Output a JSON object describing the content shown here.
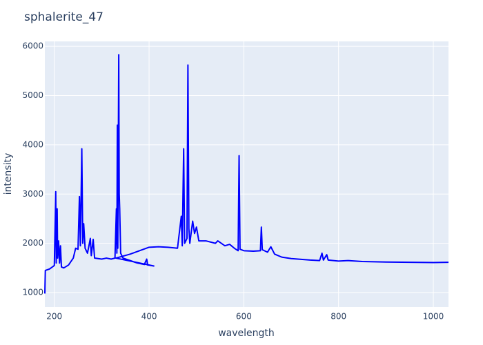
{
  "chart_data": {
    "type": "line",
    "title": "sphalerite_47",
    "x_label": "wavelength",
    "y_label": "intensity",
    "color": "#0000ff",
    "grid": true,
    "xlim": [
      180,
      1032
    ],
    "ylim": [
      706,
      6100
    ],
    "xticks": [
      200,
      400,
      600,
      800,
      1000
    ],
    "yticks": [
      1000,
      2000,
      3000,
      4000,
      5000,
      6000
    ],
    "x": [
      180,
      181,
      190,
      200,
      203,
      204,
      206,
      207,
      209,
      211,
      213,
      215,
      220,
      230,
      240,
      245,
      250,
      253,
      255,
      258,
      260,
      262,
      265,
      270,
      276,
      278,
      282,
      285,
      300,
      310,
      320,
      328,
      331,
      332,
      333,
      334,
      336,
      337,
      338,
      340,
      345,
      360,
      375,
      390,
      395,
      397,
      410,
      330,
      345,
      360,
      380,
      400,
      420,
      440,
      460,
      468,
      470,
      473,
      475,
      480,
      482,
      484,
      486,
      492,
      496,
      500,
      505,
      520,
      540,
      545,
      560,
      570,
      580,
      588,
      590,
      592,
      600,
      620,
      635,
      637,
      639,
      650,
      657,
      665,
      680,
      700,
      740,
      760,
      765,
      768,
      775,
      778,
      800,
      820,
      850,
      900,
      950,
      1000,
      1032
    ],
    "values": [
      980,
      1450,
      1480,
      1550,
      3050,
      1600,
      2700,
      1700,
      2050,
      1600,
      1950,
      1520,
      1500,
      1560,
      1700,
      1900,
      1880,
      2950,
      1950,
      3920,
      2000,
      2400,
      1900,
      1800,
      2100,
      1750,
      2080,
      1700,
      1680,
      1700,
      1680,
      1700,
      2700,
      1800,
      4400,
      1900,
      5830,
      3000,
      2700,
      1800,
      1700,
      1650,
      1600,
      1570,
      1680,
      1560,
      1540,
      1700,
      1740,
      1780,
      1850,
      1920,
      1930,
      1920,
      1900,
      2550,
      1950,
      3920,
      2000,
      2100,
      5620,
      2300,
      2000,
      2450,
      2200,
      2330,
      2050,
      2050,
      2000,
      2050,
      1950,
      1980,
      1900,
      1850,
      3780,
      1880,
      1850,
      1840,
      1850,
      2330,
      1870,
      1820,
      1930,
      1780,
      1720,
      1690,
      1660,
      1650,
      1800,
      1660,
      1770,
      1660,
      1640,
      1650,
      1630,
      1620,
      1615,
      1610,
      1615
    ]
  }
}
